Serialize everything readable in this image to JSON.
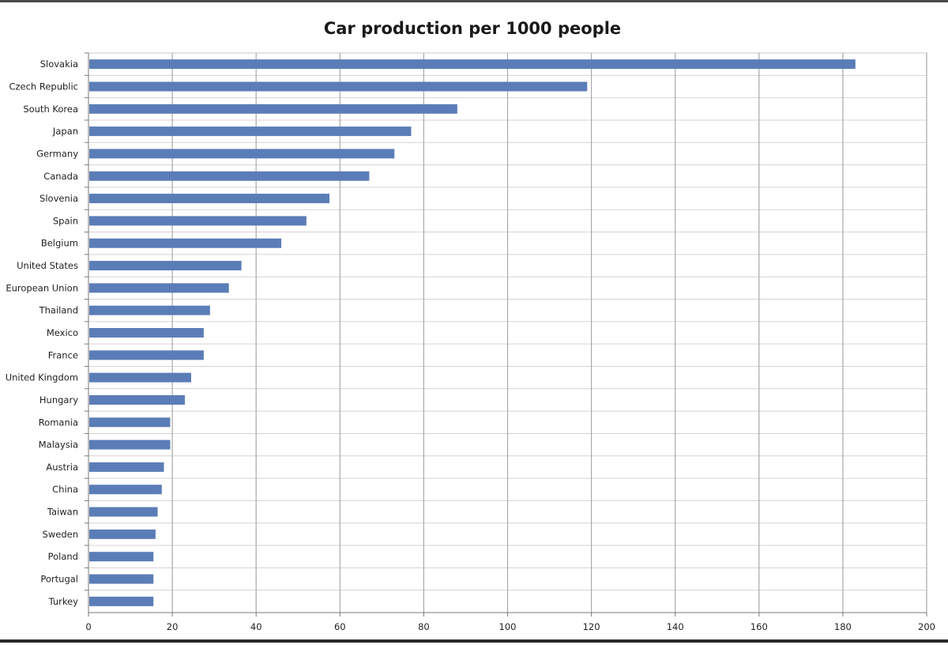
{
  "chart_data": {
    "type": "bar",
    "orientation": "horizontal",
    "title": "Car production per 1000 people",
    "xlabel": "",
    "ylabel": "",
    "xlim": [
      0,
      200
    ],
    "x_ticks": [
      0,
      20,
      40,
      60,
      80,
      100,
      120,
      140,
      160,
      180,
      200
    ],
    "grid": true,
    "legend": "none",
    "bar_color": "#5b7db7",
    "categories": [
      "Slovakia",
      "Czech Republic",
      "South Korea",
      "Japan",
      "Germany",
      "Canada",
      "Slovenia",
      "Spain",
      "Belgium",
      "United States",
      "European Union",
      "Thailand",
      "Mexico",
      "France",
      "United Kingdom",
      "Hungary",
      "Romania",
      "Malaysia",
      "Austria",
      "China",
      "Taiwan",
      "Sweden",
      "Poland",
      "Portugal",
      "Turkey"
    ],
    "values": [
      183,
      119,
      88,
      77,
      73,
      67,
      57.5,
      52,
      46,
      36.5,
      33.5,
      29,
      27.5,
      27.5,
      24.5,
      23,
      19.5,
      19.5,
      18,
      17.5,
      16.5,
      16,
      15.5,
      15.5,
      15.5
    ]
  }
}
